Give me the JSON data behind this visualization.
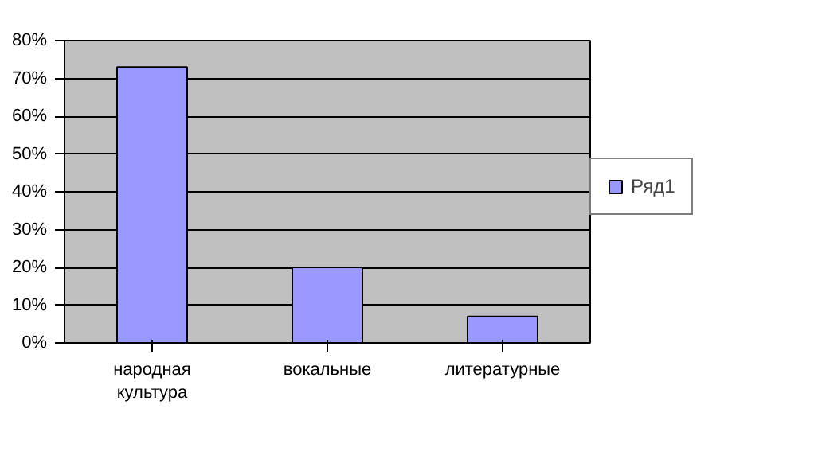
{
  "chart_data": {
    "type": "bar",
    "categories": [
      "народная культура",
      "вокальные",
      "литературные"
    ],
    "series": [
      {
        "name": "Ряд1",
        "color": "#9999ff",
        "values": [
          73,
          20,
          7
        ]
      }
    ],
    "ylim": [
      0,
      80
    ],
    "yticks": [
      {
        "value": 0,
        "label": "0%"
      },
      {
        "value": 10,
        "label": "10%"
      },
      {
        "value": 20,
        "label": "20%"
      },
      {
        "value": 30,
        "label": "30%"
      },
      {
        "value": 40,
        "label": "40%"
      },
      {
        "value": 50,
        "label": "50%"
      },
      {
        "value": 60,
        "label": "60%"
      },
      {
        "value": 70,
        "label": "70%"
      },
      {
        "value": 80,
        "label": "80%"
      }
    ],
    "grid": "y",
    "legend": "right"
  }
}
